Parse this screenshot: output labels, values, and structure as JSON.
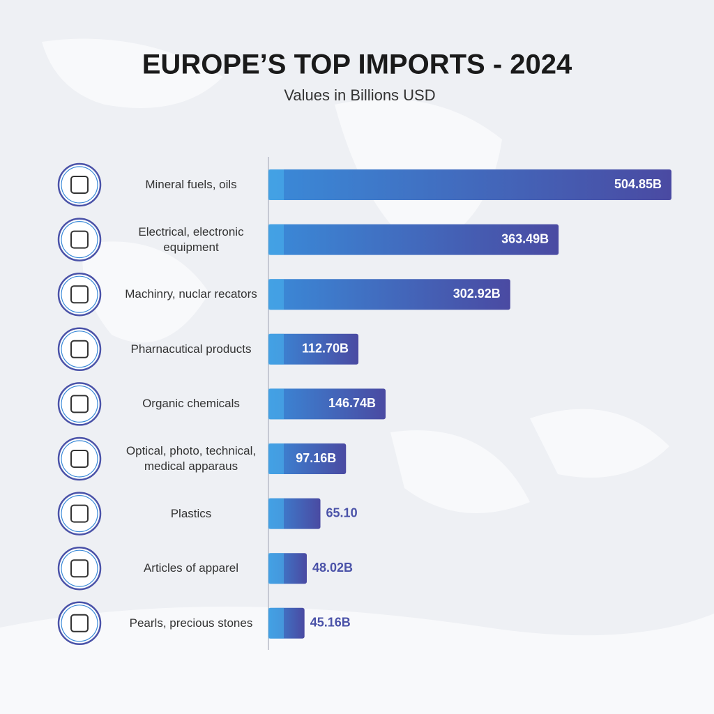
{
  "chart_data": {
    "type": "bar",
    "orientation": "horizontal",
    "title": "EUROPE’S TOP IMPORTS - 2024",
    "subtitle": "Values in Billions USD",
    "categories": [
      "Mineral fuels, oils",
      "Electrical, electronic equipment",
      "Machinry, nuclar recators",
      "Pharnacutical products",
      "Organic chemicals",
      "Optical, photo, technical, medical apparaus",
      "Plastics",
      "Articles of apparel",
      "Pearls, precious stones"
    ],
    "values": [
      504.85,
      363.49,
      302.92,
      112.7,
      146.74,
      97.16,
      65.1,
      48.02,
      45.16
    ],
    "value_labels": [
      "504.85B",
      "363.49B",
      "302.92B",
      "112.70B",
      "146.74B",
      "97.16B",
      "65.10",
      "48.02B",
      "45.16B"
    ],
    "color": "#4a52a8"
  }
}
